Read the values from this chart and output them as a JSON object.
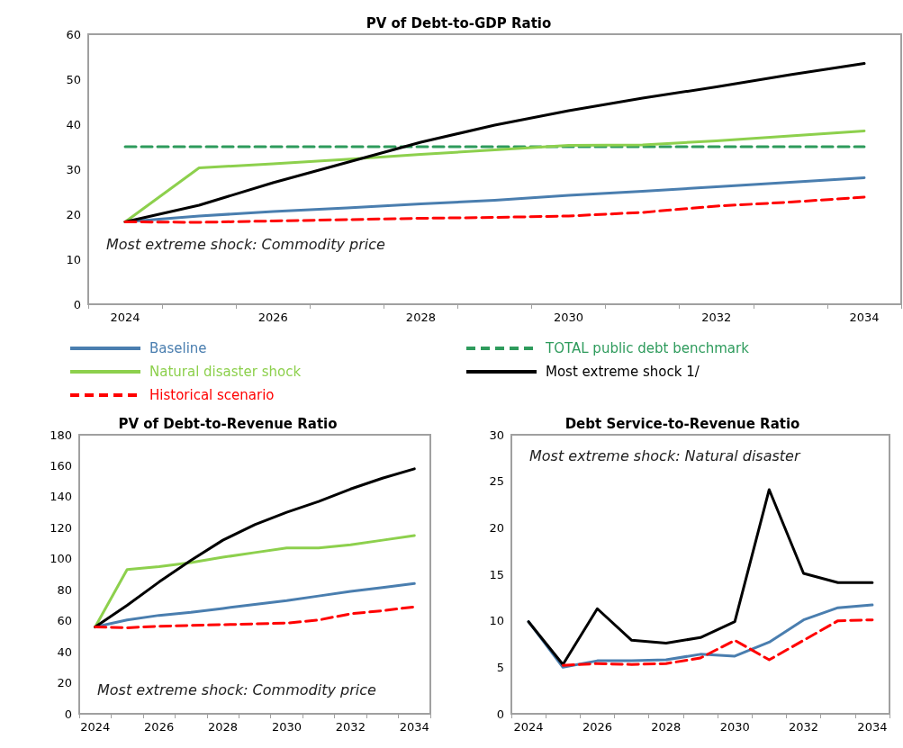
{
  "chart_data": [
    {
      "type": "line",
      "title": "PV of Debt-to-GDP Ratio",
      "categories": [
        "2024",
        null,
        "2026",
        null,
        "2028",
        null,
        "2030",
        null,
        "2032",
        null,
        "2034"
      ],
      "ylim": [
        0,
        60
      ],
      "yticks": [
        0,
        10,
        20,
        30,
        40,
        50,
        60
      ],
      "grid": false,
      "legend": "bottom",
      "annotations": [
        "Most extreme shock: Commodity price"
      ],
      "series": [
        {
          "name": "Baseline",
          "color": "#4a7eaf",
          "values": [
            18.3,
            19.6,
            20.6,
            21.4,
            22.3,
            23.1,
            24.2,
            25.1,
            26.1,
            27.1,
            28.1
          ]
        },
        {
          "name": "TOTAL public debt benchmark",
          "color": "#2e9b5c",
          "line_style": "dashed",
          "values": [
            35,
            35,
            35,
            35,
            35,
            35,
            35,
            35,
            35,
            35,
            35
          ]
        },
        {
          "name": "Natural disaster shock",
          "color": "#8dd04d",
          "values": [
            18.3,
            30.3,
            31.2,
            32.2,
            33.3,
            34.3,
            35.3,
            35.4,
            36.3,
            37.4,
            38.5
          ]
        },
        {
          "name": "Most extreme shock 1/",
          "color": "#000000",
          "values": [
            18.3,
            22,
            27,
            31.5,
            36,
            39.8,
            43,
            45.8,
            48.3,
            51,
            53.5
          ]
        },
        {
          "name": "Historical scenario",
          "color": "#ff0000",
          "line_style": "dashed",
          "values": [
            18.3,
            18.2,
            18.5,
            18.8,
            19.1,
            19.3,
            19.6,
            20.4,
            21.8,
            22.7,
            23.8
          ]
        }
      ]
    },
    {
      "type": "line",
      "title": "PV of Debt-to-Revenue Ratio",
      "categories": [
        "2024",
        null,
        "2026",
        null,
        "2028",
        null,
        "2030",
        null,
        "2032",
        null,
        "2034"
      ],
      "ylim": [
        0,
        180
      ],
      "yticks": [
        0,
        20,
        40,
        60,
        80,
        100,
        120,
        140,
        160,
        180
      ],
      "grid": false,
      "annotations": [
        "Most extreme shock: Commodity price"
      ],
      "series": [
        {
          "color": "#4a7eaf",
          "values": [
            56,
            60.5,
            63.5,
            65.5,
            68,
            70.5,
            73,
            76,
            79,
            81.5,
            84
          ]
        },
        {
          "color": "#8dd04d",
          "values": [
            56,
            93,
            95,
            97.5,
            101,
            104,
            107,
            107,
            109,
            112,
            115
          ]
        },
        {
          "color": "#000000",
          "values": [
            56,
            70,
            85,
            99,
            112,
            122,
            130,
            137,
            145,
            152,
            158
          ]
        },
        {
          "color": "#ff0000",
          "line_style": "dashed",
          "values": [
            56,
            55.5,
            56.5,
            57,
            57.5,
            58,
            58.5,
            60.5,
            64.5,
            66.5,
            69
          ]
        }
      ]
    },
    {
      "type": "line",
      "title": "Debt Service-to-Revenue Ratio",
      "categories": [
        "2024",
        null,
        "2026",
        null,
        "2028",
        null,
        "2030",
        null,
        "2032",
        null,
        "2034"
      ],
      "ylim": [
        0,
        30
      ],
      "yticks": [
        0,
        5,
        10,
        15,
        20,
        25,
        30
      ],
      "grid": false,
      "annotations": [
        "Most extreme shock: Natural disaster"
      ],
      "series": [
        {
          "color": "#4a7eaf",
          "values": [
            9.9,
            5.0,
            5.7,
            5.7,
            5.8,
            6.4,
            6.2,
            7.7,
            10.1,
            11.4,
            11.7
          ]
        },
        {
          "color": "#000000",
          "values": [
            9.9,
            5.3,
            11.3,
            7.9,
            7.6,
            8.2,
            9.9,
            24.1,
            15.1,
            14.1,
            14.1
          ]
        },
        {
          "color": "#ff0000",
          "line_style": "dashed",
          "values": [
            null,
            5.2,
            5.4,
            5.3,
            5.4,
            6.0,
            7.9,
            5.8,
            7.9,
            10.0,
            10.1
          ]
        }
      ]
    }
  ]
}
